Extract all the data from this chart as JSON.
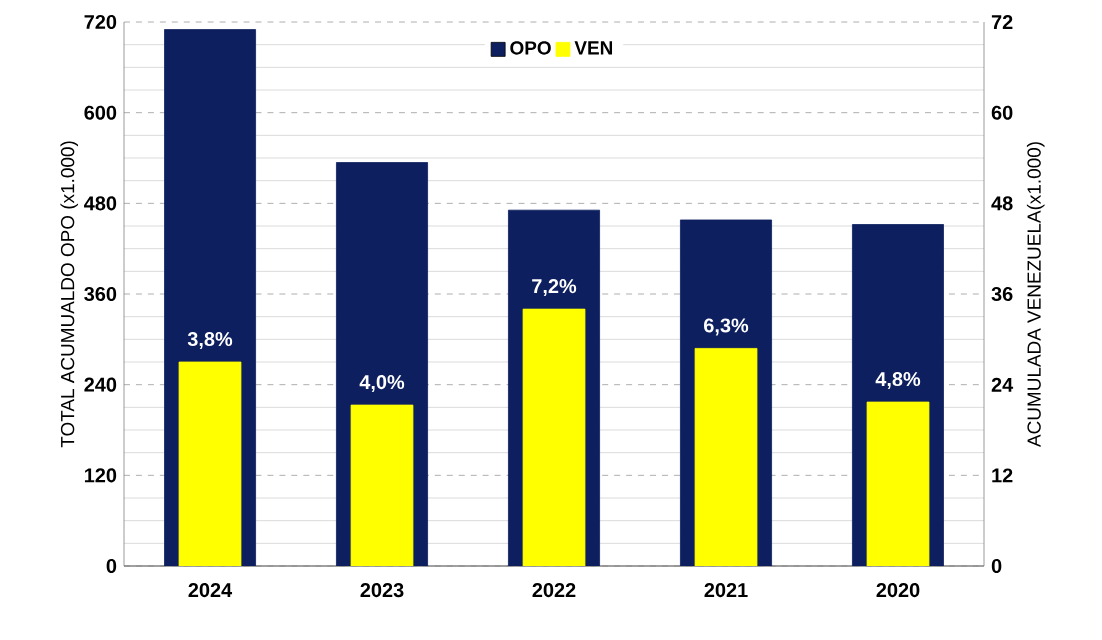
{
  "chart_data": {
    "type": "bar",
    "xlabel": null,
    "ylabel": "TOTAL ACUMUALDO OPO (x1.000)",
    "y2label": "ACUMULADA VENEZUELA(x1.000)",
    "categories": [
      "2024",
      "2023",
      "2022",
      "2021",
      "2020"
    ],
    "series": [
      {
        "name": "OPO",
        "color": "#0d1f5e",
        "values": [
          710,
          534,
          471,
          458,
          452
        ]
      },
      {
        "name": "VEN",
        "color": "#ffff00",
        "axis": "y2",
        "values": [
          27,
          21.3,
          34,
          28.8,
          21.7
        ]
      }
    ],
    "ylim": [
      0,
      720
    ],
    "yticks": [
      0,
      120,
      240,
      360,
      480,
      600,
      720
    ],
    "y2lim": [
      0,
      72
    ],
    "y2ticks": [
      0,
      12,
      24,
      36,
      48,
      60,
      72
    ],
    "annotations": [
      "3,8%",
      "4,0%",
      "7,2%",
      "6,3%",
      "4,8%"
    ],
    "grid": "y",
    "legend": "top"
  }
}
